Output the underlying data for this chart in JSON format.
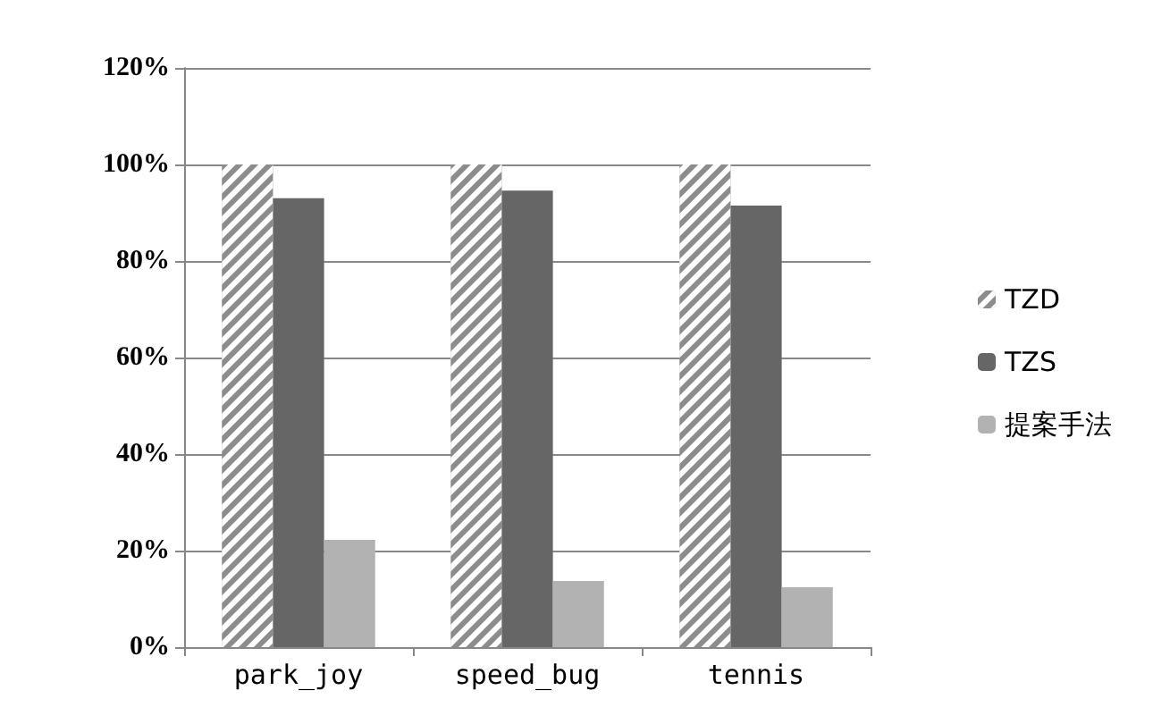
{
  "chart_data": {
    "type": "bar",
    "categories": [
      "park_joy",
      "speed_bug",
      "tennis"
    ],
    "series": [
      {
        "name": "TZD",
        "color": "#8c8c8c",
        "values": [
          100,
          100,
          100
        ]
      },
      {
        "name": "TZS",
        "color": "#666666",
        "values": [
          93,
          94.6,
          91.5
        ]
      },
      {
        "name": "提案手法",
        "color": "#b2b2b2",
        "values": [
          22.2,
          13.7,
          12.4
        ]
      }
    ],
    "ylim": [
      0,
      120
    ],
    "yticks": [
      {
        "value": 0,
        "label": "0%"
      },
      {
        "value": 20,
        "label": "20%"
      },
      {
        "value": 40,
        "label": "40%"
      },
      {
        "value": 60,
        "label": "60%"
      },
      {
        "value": 80,
        "label": "80%"
      },
      {
        "value": 100,
        "label": "100%"
      },
      {
        "value": 120,
        "label": "120%"
      }
    ],
    "grid": "y",
    "legend": "right"
  }
}
